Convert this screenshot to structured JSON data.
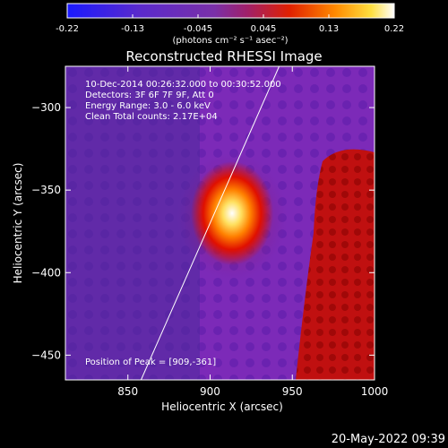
{
  "chart_data": {
    "type": "heatmap",
    "title": "Reconstructed RHESSI Image",
    "xlabel": "Heliocentric X (arcsec)",
    "ylabel": "Heliocentric Y (arcsec)",
    "xlim": [
      812,
      1000
    ],
    "ylim": [
      -465,
      -275
    ],
    "x_ticks": [
      850,
      900,
      950,
      1000
    ],
    "y_ticks": [
      -300,
      -350,
      -400,
      -450
    ],
    "colorbar": {
      "ticks": [
        "-0.22",
        "-0.13",
        "-0.045",
        "0.045",
        "0.13",
        "0.22"
      ],
      "unit_label": "(photons cm⁻² s⁻¹ asec⁻²)",
      "range": [
        -0.22,
        0.22
      ]
    },
    "annotations": [
      "10-Dec-2014 00:26:32.000 to 00:30:52.000",
      "Detectors: 3F 6F 7F 9F, Att 0",
      "Energy Range: 3.0 - 6.0 keV",
      "Clean     Total counts: 2.17E+04"
    ],
    "peak_label": "Position of Peak = [909,-361]",
    "peak": {
      "x": 909,
      "y": -361
    },
    "limb_line": {
      "x": [
        858,
        942
      ],
      "y": [
        -465,
        -275
      ]
    },
    "footer_date": "20-May-2022 09:39"
  }
}
